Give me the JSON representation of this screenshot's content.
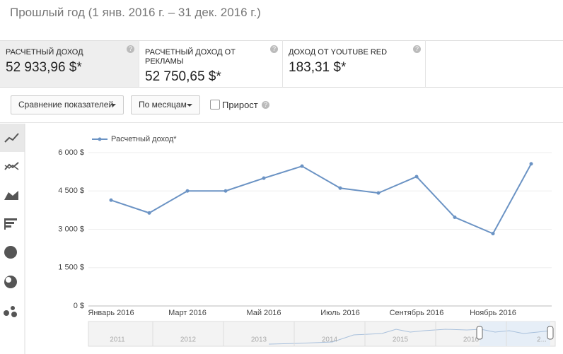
{
  "header": {
    "title": "Прошлый год (1 янв. 2016 г. – 31 дек. 2016 г.)"
  },
  "metrics": [
    {
      "label": "РАСЧЕТНЫЙ ДОХОД",
      "value": "52 933,96 $*"
    },
    {
      "label": "РАСЧЕТНЫЙ ДОХОД ОТ РЕКЛАМЫ",
      "value": "52 750,65 $*"
    },
    {
      "label": "ДОХОД ОТ YOUTUBE RED",
      "value": "183,31 $*"
    }
  ],
  "controls": {
    "compare": "Сравнение показателей",
    "period": "По месяцам",
    "growth": "Прирост"
  },
  "chart_data": {
    "type": "line",
    "categories": [
      "Январь 2016",
      null,
      "Март 2016",
      null,
      "Май 2016",
      null,
      "Июль 2016",
      null,
      "Сентябрь 2016",
      null,
      "Ноябрь 2016",
      null
    ],
    "series": [
      {
        "name": "Расчетный доход*",
        "color": "#6b93c4",
        "values": [
          4140,
          3640,
          4500,
          4500,
          5000,
          5470,
          4610,
          4420,
          5060,
          3470,
          2830,
          5560
        ]
      }
    ],
    "ylim": [
      0,
      6000
    ],
    "yticks": [
      {
        "value": 0,
        "label": "0 $"
      },
      {
        "value": 1500,
        "label": "1 500 $"
      },
      {
        "value": 3000,
        "label": "3 000 $"
      },
      {
        "value": 4500,
        "label": "4 500 $"
      },
      {
        "value": 6000,
        "label": "6 000 $"
      }
    ],
    "grid": true
  },
  "navigator": {
    "labels": [
      "2011",
      "2012",
      "2013",
      "2014",
      "2015",
      "2016",
      "2..."
    ]
  }
}
